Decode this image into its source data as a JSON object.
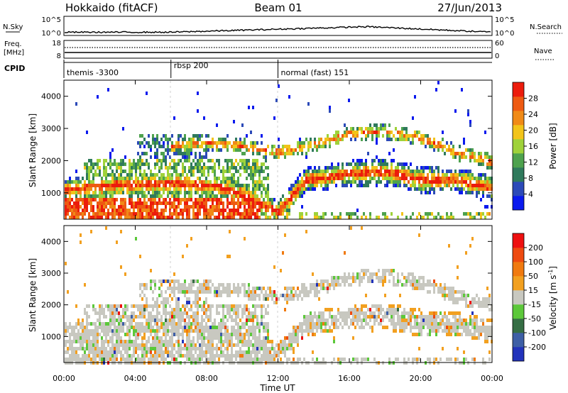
{
  "header": {
    "site": "Hokkaido (fitACF)",
    "beam": "Beam 01",
    "date": "27/Jun/2013"
  },
  "chart_data": {
    "type": "heatmap",
    "x_ticks": [
      "00:00",
      "04:00",
      "08:00",
      "12:00",
      "16:00",
      "20:00",
      "00:00"
    ],
    "x_tick_hours": [
      0,
      4,
      8,
      12,
      16,
      20,
      24
    ],
    "xlabel": "Time UT",
    "xlim_hours": [
      0,
      24
    ],
    "ylabel": "Slant Range [km]",
    "ylim_km": [
      180,
      4500
    ],
    "y_ticks": [
      1000,
      2000,
      3000,
      4000
    ],
    "header_panels": {
      "nsky": {
        "label": "N.Sky",
        "ticks": [
          "10^5",
          "10^0"
        ]
      },
      "nsearch": {
        "label": "N.Search",
        "ticks": [
          "10^5",
          "10^0"
        ]
      },
      "freq": {
        "label_top": "Freq.",
        "label_unit": "[MHz]",
        "ticks": [
          "18",
          "8"
        ]
      },
      "nave": {
        "label": "Nave",
        "ticks": [
          "60",
          "0"
        ]
      },
      "cpid": {
        "label": "CPID",
        "segments": [
          {
            "label": "themis -3300",
            "start_hour": 0
          },
          {
            "label": "rbsp 200",
            "start_hour": 6
          },
          {
            "label": "normal (fast) 151",
            "start_hour": 12
          }
        ]
      }
    },
    "power_scale": {
      "label": "Power [dB]",
      "ticks": [
        "28",
        "24",
        "20",
        "16",
        "12",
        "8",
        "4"
      ],
      "colors": [
        "#0a1aee",
        "#2c4ab8",
        "#2f7a5c",
        "#4ea24e",
        "#9fd23a",
        "#f2c41a",
        "#f08a17",
        "#ee5a12",
        "#ec1c0c"
      ]
    },
    "velocity_scale": {
      "label": "Velocity [m s",
      "label_sup": "-1",
      "label_close": "]",
      "ticks": [
        "200",
        "100",
        "50",
        "15",
        "-15",
        "-50",
        "-100",
        "-200"
      ],
      "colors": [
        "#2233bb",
        "#3e5fa6",
        "#356e44",
        "#5cc83a",
        "#c8c8c0",
        "#f2a020",
        "#f07a10",
        "#ee4a10",
        "#ee1010"
      ]
    }
  }
}
